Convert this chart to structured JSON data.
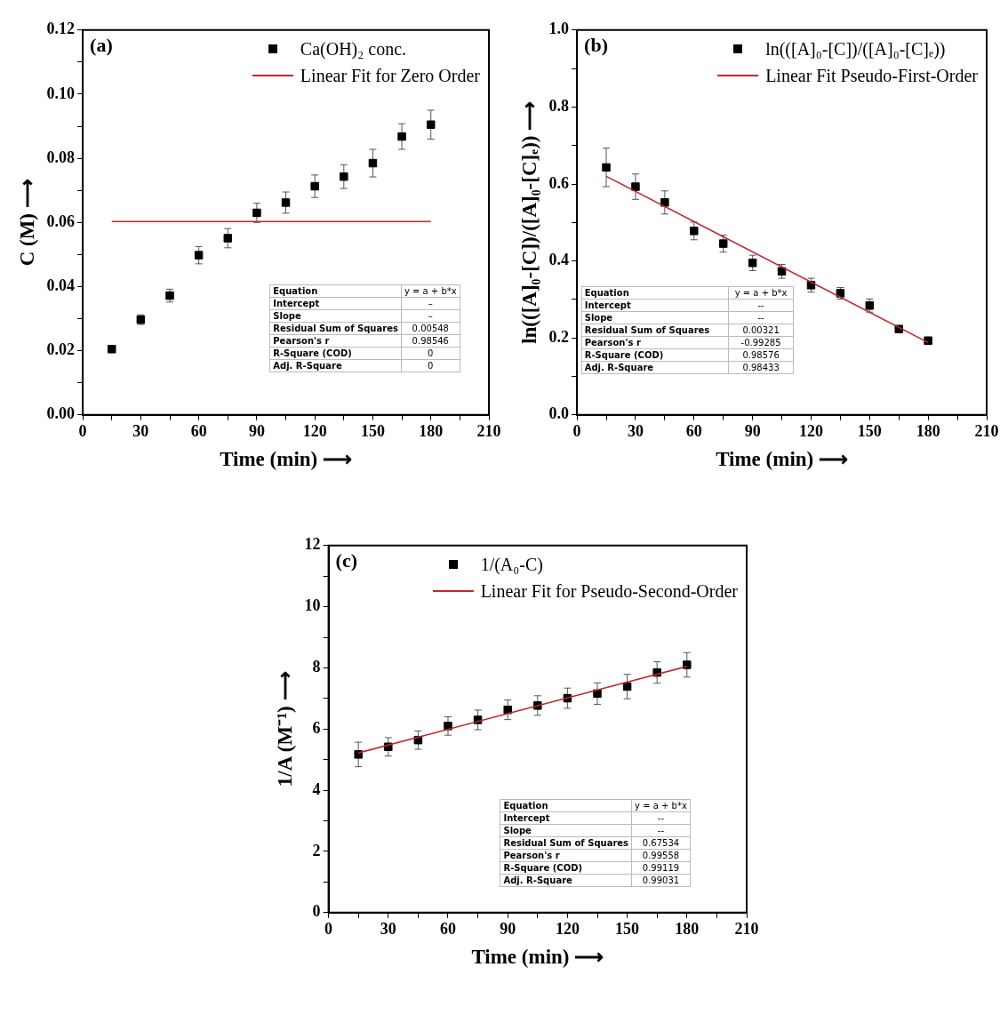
{
  "chart_data": [
    {
      "type": "scatter",
      "xlabel": "Time (min) ⟶",
      "ylabel": "C (M) ⟶",
      "x": [
        15,
        30,
        45,
        60,
        75,
        90,
        105,
        120,
        135,
        150,
        165,
        180
      ],
      "legend": "top right",
      "xlim": [
        0,
        210
      ],
      "xticks": [
        0,
        {
          "value": 15,
          "label": null
        },
        30,
        {
          "value": 45,
          "label": null
        },
        60,
        {
          "value": 75,
          "label": null
        },
        90,
        {
          "value": 105,
          "label": null
        },
        120,
        {
          "value": 135,
          "label": null
        },
        150,
        {
          "value": 165,
          "label": null
        },
        180,
        {
          "value": 195,
          "label": null
        },
        210
      ],
      "ylim": [
        0,
        0.12
      ],
      "yticks": [
        {
          "value": 0,
          "label": "0.00"
        },
        {
          "value": 0.01,
          "label": null
        },
        0.02,
        {
          "value": 0.03,
          "label": null
        },
        0.04,
        {
          "value": 0.05,
          "label": null
        },
        0.06,
        {
          "value": 0.07,
          "label": null
        },
        0.08,
        {
          "value": 0.09,
          "label": null
        },
        {
          "value": 0.1,
          "label": "0.10"
        },
        {
          "value": 0.11,
          "label": null
        },
        0.12
      ],
      "series": [
        {
          "name": "Ca(OH)₂ conc.",
          "type": "scatter",
          "marker": "square",
          "color": "#000000",
          "values": [
            0.0205,
            0.0297,
            0.0372,
            0.0498,
            0.0551,
            0.063,
            0.0662,
            0.0713,
            0.0743,
            0.0785,
            0.0868,
            0.0905
          ],
          "errors": [
            null,
            0.0015,
            0.002,
            0.0027,
            0.003,
            0.003,
            0.0033,
            0.0035,
            0.0037,
            0.0043,
            0.004,
            0.0045
          ]
        },
        {
          "name": "Linear Fit for Zero Order",
          "type": "line",
          "color": "#c1272d",
          "values": [
            0.0603,
            null,
            null,
            null,
            null,
            null,
            null,
            null,
            null,
            null,
            null,
            0.0603
          ]
        }
      ],
      "annotations": [
        "(a)",
        "Equation",
        "y = a + b*x",
        "Intercept",
        "–",
        "Slope",
        "–",
        "Residual Sum of Squares",
        "0.00548",
        "Pearson's r",
        "0.98546",
        "R-Square (COD)",
        "0",
        "Adj. R-Square",
        "0"
      ]
    },
    {
      "type": "scatter",
      "xlabel": "Time (min) ⟶",
      "ylabel": "ln(([A]₀-[C])/([A]₀-[C]ₑ)) ⟶",
      "x": [
        15,
        30,
        45,
        60,
        75,
        90,
        105,
        120,
        135,
        150,
        165,
        180
      ],
      "legend": "top right",
      "xlim": [
        0,
        210
      ],
      "xticks": [
        0,
        {
          "value": 15,
          "label": null
        },
        30,
        {
          "value": 45,
          "label": null
        },
        60,
        {
          "value": 75,
          "label": null
        },
        90,
        {
          "value": 105,
          "label": null
        },
        120,
        {
          "value": 135,
          "label": null
        },
        150,
        {
          "value": 165,
          "label": null
        },
        180,
        {
          "value": 195,
          "label": null
        },
        210
      ],
      "ylim": [
        0,
        1
      ],
      "yticks": [
        {
          "value": 0,
          "label": "0.0"
        },
        {
          "value": 0.1,
          "label": null
        },
        0.2,
        {
          "value": 0.3,
          "label": null
        },
        0.4,
        {
          "value": 0.5,
          "label": null
        },
        0.6,
        {
          "value": 0.7,
          "label": null
        },
        0.8,
        {
          "value": 0.9,
          "label": null
        },
        {
          "value": 1,
          "label": "1.0"
        }
      ],
      "series": [
        {
          "name": "ln(([A]₀-[C])/([A]₀-[C]ₑ))",
          "type": "scatter",
          "marker": "square",
          "color": "#000000",
          "values": [
            0.643,
            0.593,
            0.552,
            0.478,
            0.445,
            0.395,
            0.373,
            0.337,
            0.316,
            0.284,
            0.223,
            0.193
          ],
          "errors": [
            0.05,
            0.033,
            0.03,
            0.023,
            0.022,
            0.02,
            0.018,
            0.018,
            0.015,
            0.017,
            null,
            null
          ]
        },
        {
          "name": "Linear Fit Pseudo-First-Order",
          "type": "line",
          "color": "#c1272d",
          "values": [
            0.62,
            null,
            null,
            null,
            null,
            null,
            null,
            null,
            null,
            null,
            null,
            0.188
          ]
        }
      ],
      "annotations": [
        "(b)",
        "Equation",
        "y = a + b*x",
        "Intercept",
        "--",
        "Slope",
        "--",
        "Residual Sum of Squares",
        "0.00321",
        "Pearson's r",
        "-0.99285",
        "R-Square (COD)",
        "0.98576",
        "Adj. R-Square",
        "0.98433"
      ]
    },
    {
      "type": "scatter",
      "xlabel": "Time (min) ⟶",
      "ylabel": "1/A (M⁻¹) ⟶",
      "x": [
        15,
        30,
        45,
        60,
        75,
        90,
        105,
        120,
        135,
        150,
        165,
        180
      ],
      "legend": "top right",
      "xlim": [
        0,
        210
      ],
      "xticks": [
        0,
        {
          "value": 15,
          "label": null
        },
        30,
        {
          "value": 45,
          "label": null
        },
        60,
        {
          "value": 75,
          "label": null
        },
        90,
        {
          "value": 105,
          "label": null
        },
        120,
        {
          "value": 135,
          "label": null
        },
        150,
        {
          "value": 165,
          "label": null
        },
        180,
        {
          "value": 195,
          "label": null
        },
        210
      ],
      "ylim": [
        0,
        12
      ],
      "yticks": [
        0,
        {
          "value": 1,
          "label": null
        },
        2,
        {
          "value": 3,
          "label": null
        },
        4,
        {
          "value": 5,
          "label": null
        },
        6,
        {
          "value": 7,
          "label": null
        },
        8,
        {
          "value": 9,
          "label": null
        },
        10,
        {
          "value": 11,
          "label": null
        },
        12
      ],
      "series": [
        {
          "name": "1/(A₀-C)",
          "type": "scatter",
          "marker": "square",
          "color": "#000000",
          "values": [
            5.17,
            5.42,
            5.64,
            6.1,
            6.3,
            6.63,
            6.77,
            7.01,
            7.16,
            7.39,
            7.85,
            8.1
          ],
          "errors": [
            0.4,
            0.3,
            0.3,
            0.3,
            0.32,
            0.32,
            0.32,
            0.33,
            0.35,
            0.4,
            0.35,
            0.4
          ]
        },
        {
          "name": "Linear Fit for Pseudo-Second-Order",
          "type": "line",
          "color": "#c1272d",
          "values": [
            5.22,
            null,
            null,
            null,
            null,
            null,
            null,
            null,
            null,
            null,
            null,
            8.05
          ]
        }
      ],
      "annotations": [
        "(c)",
        "Equation",
        "y = a + b*x",
        "Intercept",
        "--",
        "Slope",
        "--",
        "Residual Sum of Squares",
        "0.67534",
        "Pearson's r",
        "0.99558",
        "R-Square (COD)",
        "0.99119",
        "Adj. R-Square",
        "0.99031"
      ]
    }
  ]
}
